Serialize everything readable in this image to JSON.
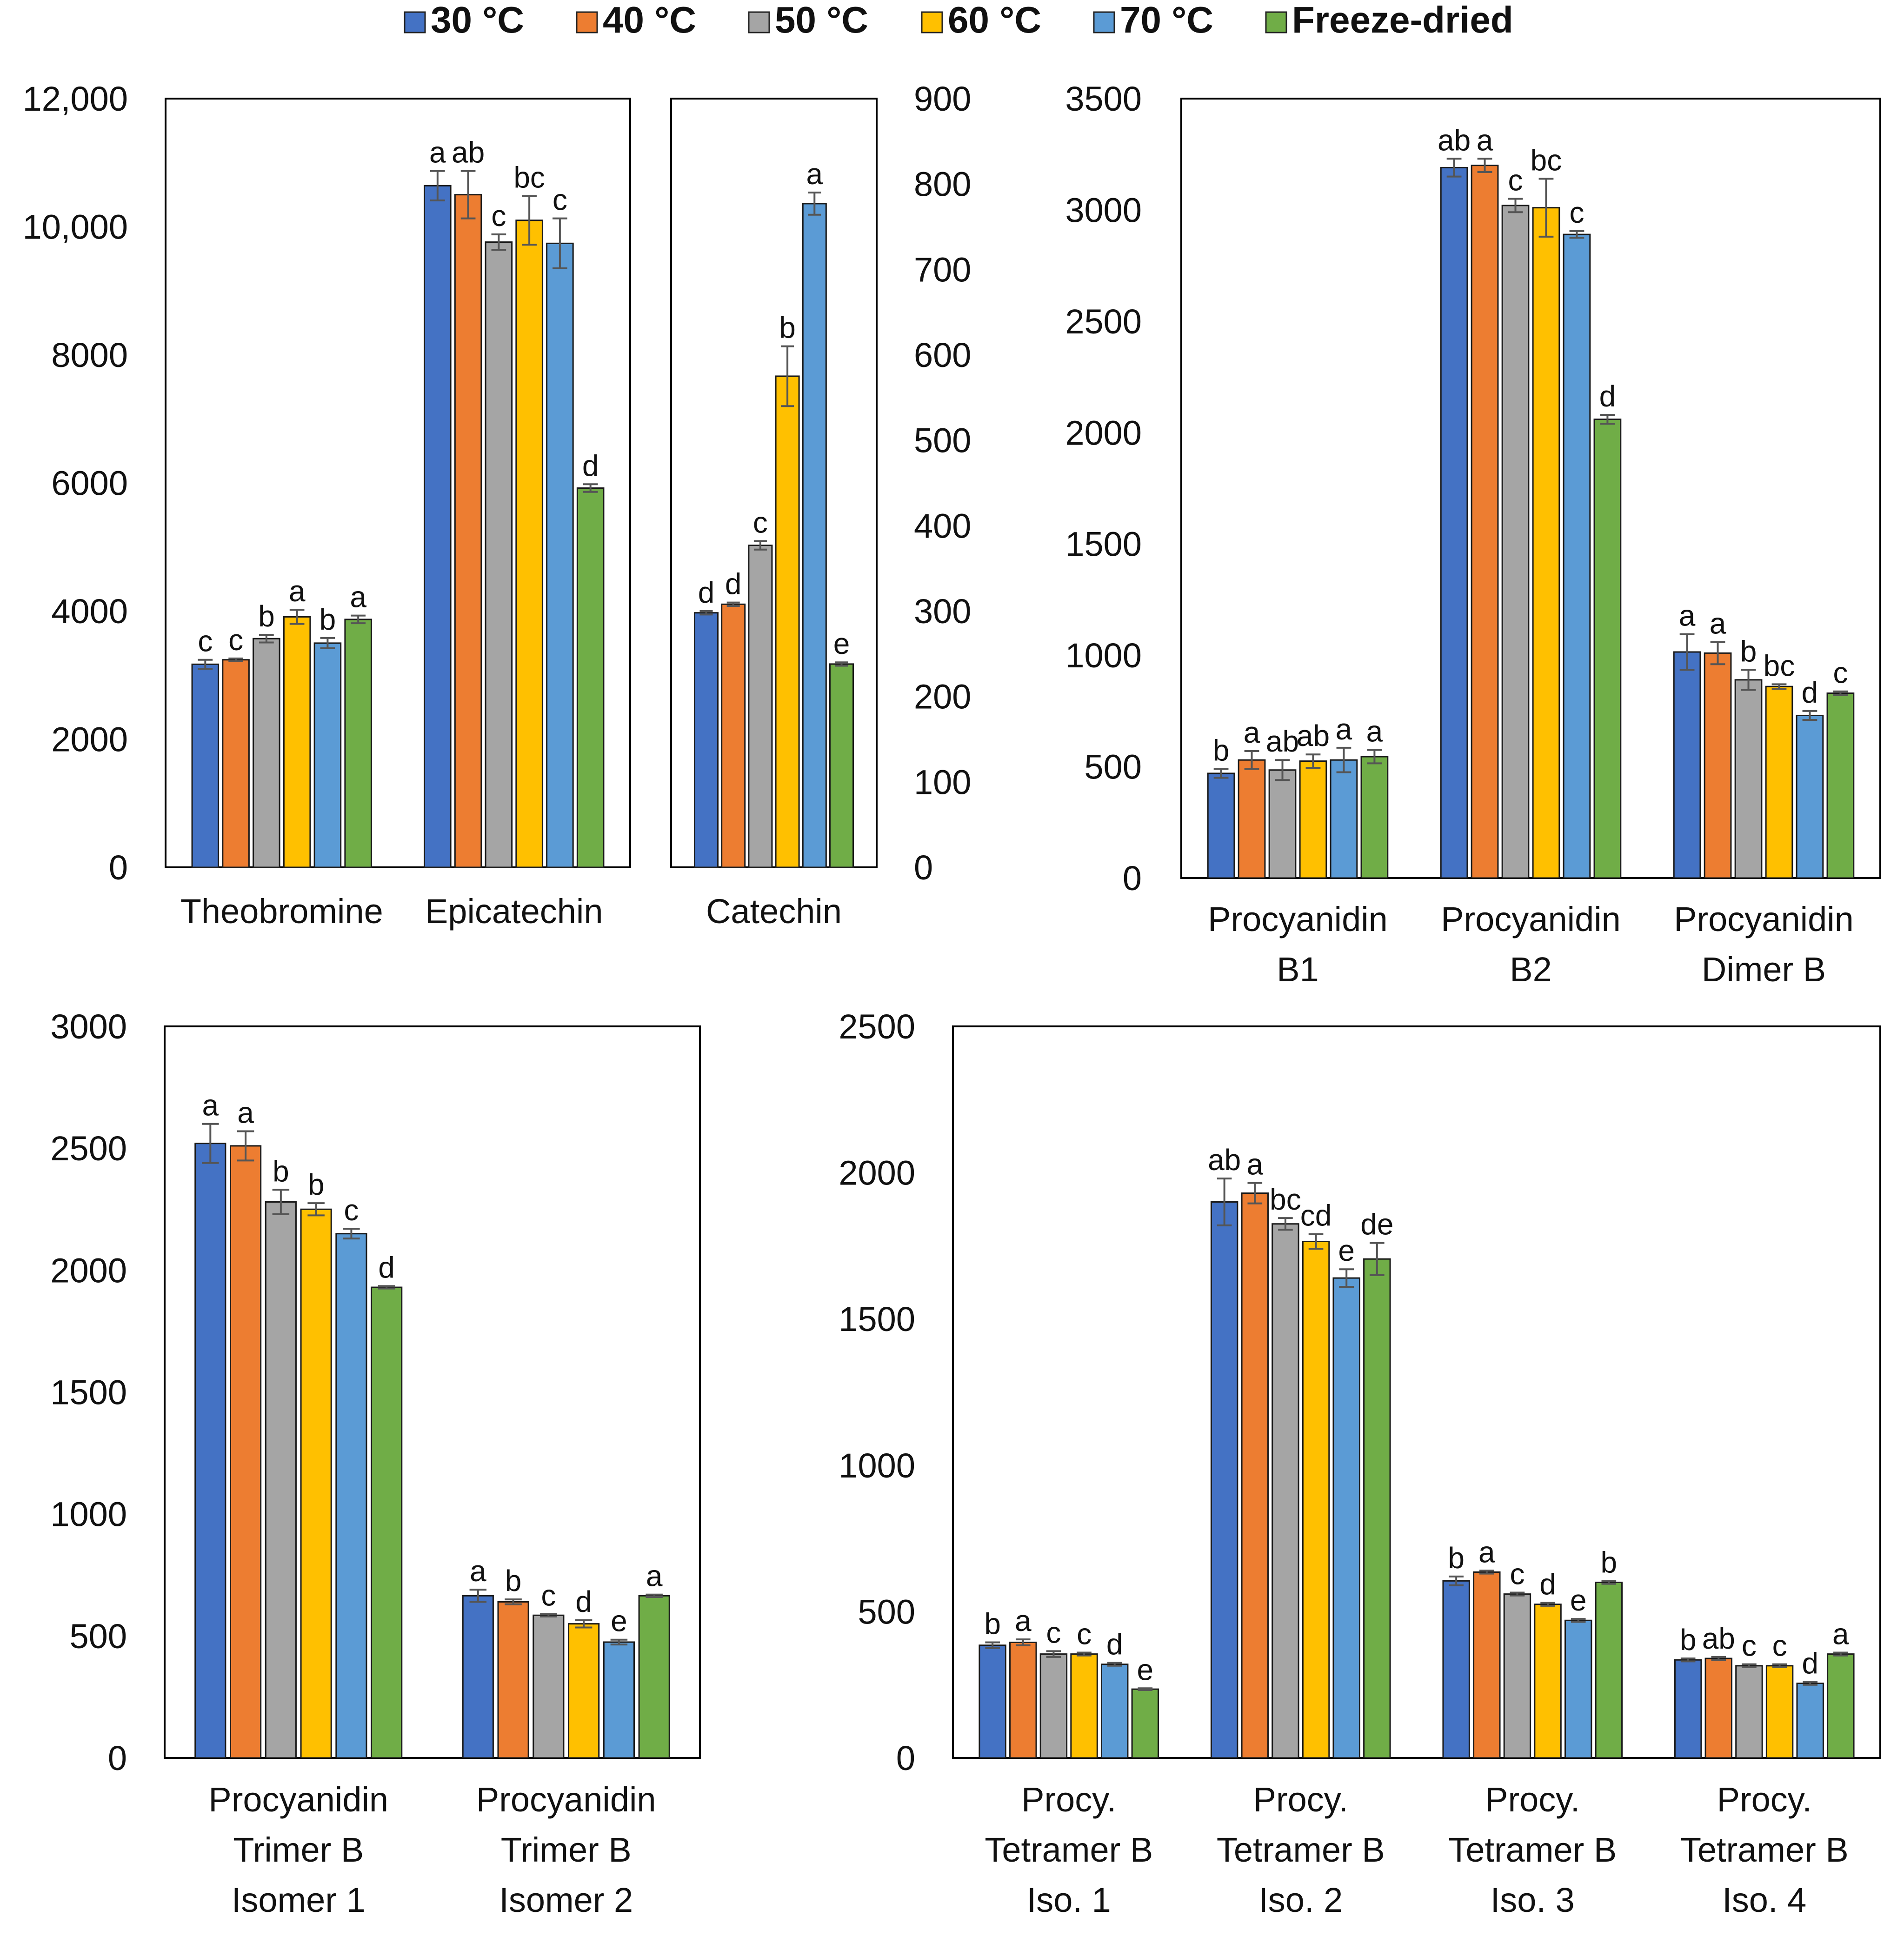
{
  "legend": {
    "items": [
      {
        "label": "30 °C",
        "color": "#4472C4"
      },
      {
        "label": "40 °C",
        "color": "#ED7D31"
      },
      {
        "label": "50 °C",
        "color": "#A5A5A5"
      },
      {
        "label": "60 °C",
        "color": "#FFC000"
      },
      {
        "label": "70 °C",
        "color": "#5B9BD5"
      },
      {
        "label": "Freeze-dried",
        "color": "#70AD47"
      }
    ]
  },
  "chart_data": [
    {
      "id": "panel-a",
      "type": "bar",
      "ylim": [
        0,
        12000
      ],
      "yticks": [
        "0",
        "2000",
        "4000",
        "6000",
        "8000",
        "10,000",
        "12,000"
      ],
      "categories": [
        {
          "label": [
            "Theobromine"
          ],
          "values": [
            3170,
            3240,
            3570,
            3910,
            3500,
            3870
          ],
          "errors": [
            70,
            20,
            60,
            110,
            80,
            60
          ],
          "letters": [
            "c",
            "c",
            "b",
            "a",
            "b",
            "a"
          ]
        },
        {
          "label": [
            "Epicatechin"
          ],
          "values": [
            10640,
            10500,
            9760,
            10100,
            9740,
            5920
          ],
          "errors": [
            230,
            370,
            120,
            380,
            390,
            60
          ],
          "letters": [
            "a",
            "ab",
            "c",
            "bc",
            "c",
            "d"
          ]
        }
      ]
    },
    {
      "id": "panel-b",
      "type": "bar",
      "ylim": [
        0,
        900
      ],
      "yticks": [
        "0",
        "100",
        "200",
        "300",
        "400",
        "500",
        "600",
        "700",
        "800",
        "900"
      ],
      "categories": [
        {
          "label": [
            "Catechin"
          ],
          "values": [
            298,
            308,
            377,
            575,
            777,
            238
          ],
          "errors": [
            2,
            2,
            5,
            35,
            13,
            2
          ],
          "letters": [
            "d",
            "d",
            "c",
            "b",
            "a",
            "e"
          ]
        }
      ]
    },
    {
      "id": "panel-c",
      "type": "bar",
      "ylim": [
        0,
        3500
      ],
      "yticks": [
        "0",
        "500",
        "1000",
        "1500",
        "2000",
        "2500",
        "3000",
        "3500"
      ],
      "categories": [
        {
          "label": [
            "Procyanidin",
            "B1"
          ],
          "values": [
            470,
            530,
            485,
            525,
            530,
            545
          ],
          "errors": [
            20,
            40,
            45,
            30,
            55,
            30
          ],
          "letters": [
            "b",
            "a",
            "ab",
            "ab",
            "a",
            "a"
          ]
        },
        {
          "label": [
            "Procyanidin",
            "B2"
          ],
          "values": [
            3190,
            3200,
            3020,
            3010,
            2890,
            2060
          ],
          "errors": [
            40,
            30,
            30,
            130,
            15,
            20
          ],
          "letters": [
            "ab",
            "a",
            "c",
            "bc",
            "c",
            "d"
          ]
        },
        {
          "label": [
            "Procyanidin",
            "Dimer B"
          ],
          "values": [
            1015,
            1010,
            890,
            860,
            730,
            830
          ],
          "errors": [
            80,
            50,
            45,
            10,
            20,
            8
          ],
          "letters": [
            "a",
            "a",
            "b",
            "bc",
            "d",
            "c"
          ]
        }
      ]
    },
    {
      "id": "panel-d",
      "type": "bar",
      "ylim": [
        0,
        3000
      ],
      "yticks": [
        "0",
        "500",
        "1000",
        "1500",
        "2000",
        "2500",
        "3000"
      ],
      "categories": [
        {
          "label": [
            "Procyanidin",
            "Trimer B",
            "Isomer 1"
          ],
          "values": [
            2520,
            2510,
            2280,
            2250,
            2150,
            1930
          ],
          "errors": [
            80,
            60,
            50,
            25,
            20,
            5
          ],
          "letters": [
            "a",
            "a",
            "b",
            "b",
            "c",
            "d"
          ]
        },
        {
          "label": [
            "Procyanidin",
            "Trimer B",
            "Isomer 2"
          ],
          "values": [
            665,
            640,
            585,
            550,
            475,
            665
          ],
          "errors": [
            25,
            10,
            5,
            15,
            10,
            5
          ],
          "letters": [
            "a",
            "b",
            "c",
            "d",
            "e",
            "a"
          ]
        }
      ]
    },
    {
      "id": "panel-e",
      "type": "bar",
      "ylim": [
        0,
        2500
      ],
      "yticks": [
        "0",
        "500",
        "1000",
        "1500",
        "2000",
        "2500"
      ],
      "categories": [
        {
          "label": [
            "Procy.",
            "Tetramer B",
            "Iso. 1"
          ],
          "values": [
            385,
            395,
            355,
            355,
            320,
            235
          ],
          "errors": [
            10,
            10,
            10,
            5,
            5,
            3
          ],
          "letters": [
            "b",
            "a",
            "c",
            "c",
            "d",
            "e"
          ]
        },
        {
          "label": [
            "Procy.",
            "Tetramer B",
            "Iso. 2"
          ],
          "values": [
            1900,
            1930,
            1825,
            1765,
            1640,
            1705
          ],
          "errors": [
            80,
            35,
            20,
            25,
            30,
            55
          ],
          "letters": [
            "ab",
            "a",
            "bc",
            "cd",
            "e",
            "de"
          ]
        },
        {
          "label": [
            "Procy.",
            "Tetramer B",
            "Iso. 3"
          ],
          "values": [
            605,
            635,
            560,
            525,
            470,
            600
          ],
          "errors": [
            15,
            5,
            5,
            5,
            5,
            5
          ],
          "letters": [
            "b",
            "a",
            "c",
            "d",
            "e",
            "b"
          ]
        },
        {
          "label": [
            "Procy.",
            "Tetramer B",
            "Iso. 4"
          ],
          "values": [
            335,
            340,
            315,
            315,
            255,
            355
          ],
          "errors": [
            5,
            5,
            5,
            5,
            5,
            5
          ],
          "letters": [
            "b",
            "ab",
            "c",
            "c",
            "d",
            "a"
          ]
        }
      ]
    }
  ]
}
